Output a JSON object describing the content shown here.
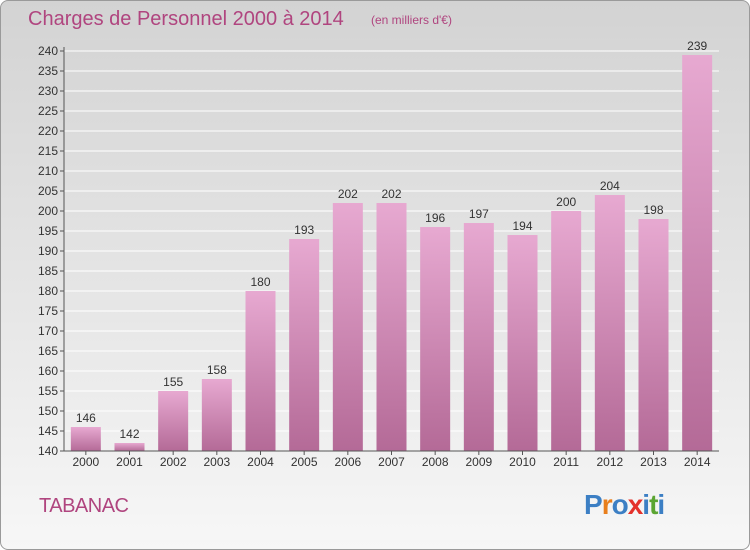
{
  "header": {
    "title": "Charges de Personnel 2000 à 2014",
    "subtitle": "(en milliers d'€)"
  },
  "footer": {
    "commune": "TABANAC",
    "logo": "Proxiti"
  },
  "colors": {
    "accent": "#b0457f",
    "bar_top": "#e7a9d1",
    "bar_bottom": "#b46a97",
    "logo_letters": [
      "#3c7fc4",
      "#e87f1d",
      "#3c7fc4",
      "#e4312b",
      "#3c7fc4",
      "#5ba532",
      "#3c7fc4"
    ]
  },
  "chart_data": {
    "type": "bar",
    "categories": [
      "2000",
      "2001",
      "2002",
      "2003",
      "2004",
      "2005",
      "2006",
      "2007",
      "2008",
      "2009",
      "2010",
      "2011",
      "2012",
      "2013",
      "2014"
    ],
    "values": [
      146,
      142,
      155,
      158,
      180,
      193,
      202,
      202,
      196,
      197,
      194,
      200,
      204,
      198,
      239
    ],
    "ylim": [
      140,
      240
    ],
    "ytick_step": 5,
    "grid": true,
    "data_labels": true
  }
}
